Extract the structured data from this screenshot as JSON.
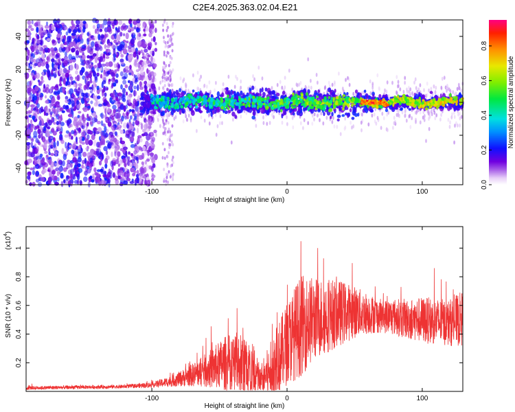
{
  "title": "C2E4.2025.363.02.04.E21",
  "chart_data": [
    {
      "type": "heatmap",
      "name": "spectrogram",
      "xlabel": "Height of straight line (km)",
      "ylabel": "Frequency (Hz)",
      "xlim": [
        -193,
        130
      ],
      "ylim": [
        -50,
        50
      ],
      "xticks": [
        -100,
        0,
        100
      ],
      "yticks": [
        -40,
        -20,
        0,
        20,
        40
      ],
      "colorbar": {
        "label": "Normalized spectral amplitude",
        "range": [
          0,
          0.95
        ],
        "ticks": [
          0.0,
          0.2,
          0.4,
          0.6,
          0.8
        ]
      },
      "description_of_data": {
        "noise_region_km": [
          -193,
          -105
        ],
        "signal_band_center_hz": 0,
        "peak_amplitude_region_km": [
          55,
          75
        ],
        "peak_amplitude": 0.9
      }
    },
    {
      "type": "line",
      "name": "snr",
      "xlabel": "Height of straight line (km)",
      "ylabel": "SNR (10 * v/v)",
      "y_multiplier_label": "(x10",
      "y_multiplier_exp": "4",
      "y_multiplier_close": ")",
      "xlim": [
        -193,
        130
      ],
      "ylim": [
        0,
        1.15
      ],
      "xticks": [
        -100,
        0,
        100
      ],
      "yticks": [
        0.2,
        0.4,
        0.6,
        0.8,
        1.0
      ],
      "color": "#ee3333",
      "envelope": {
        "x": [
          -193,
          -120,
          -100,
          -85,
          -75,
          -65,
          -55,
          -45,
          -35,
          -25,
          -20,
          -10,
          0,
          10,
          20,
          30,
          40,
          50,
          60,
          70,
          80,
          90,
          100,
          110,
          120,
          130
        ],
        "baseline": [
          0.02,
          0.03,
          0.04,
          0.06,
          0.08,
          0.1,
          0.12,
          0.14,
          0.12,
          0.08,
          0.05,
          0.1,
          0.25,
          0.35,
          0.42,
          0.45,
          0.48,
          0.5,
          0.5,
          0.49,
          0.48,
          0.46,
          0.45,
          0.44,
          0.43,
          0.45
        ],
        "spread": [
          0.02,
          0.02,
          0.03,
          0.06,
          0.1,
          0.15,
          0.22,
          0.3,
          0.35,
          0.3,
          0.15,
          0.35,
          0.45,
          0.55,
          0.45,
          0.4,
          0.35,
          0.28,
          0.22,
          0.18,
          0.2,
          0.22,
          0.25,
          0.25,
          0.25,
          0.3
        ]
      }
    }
  ]
}
